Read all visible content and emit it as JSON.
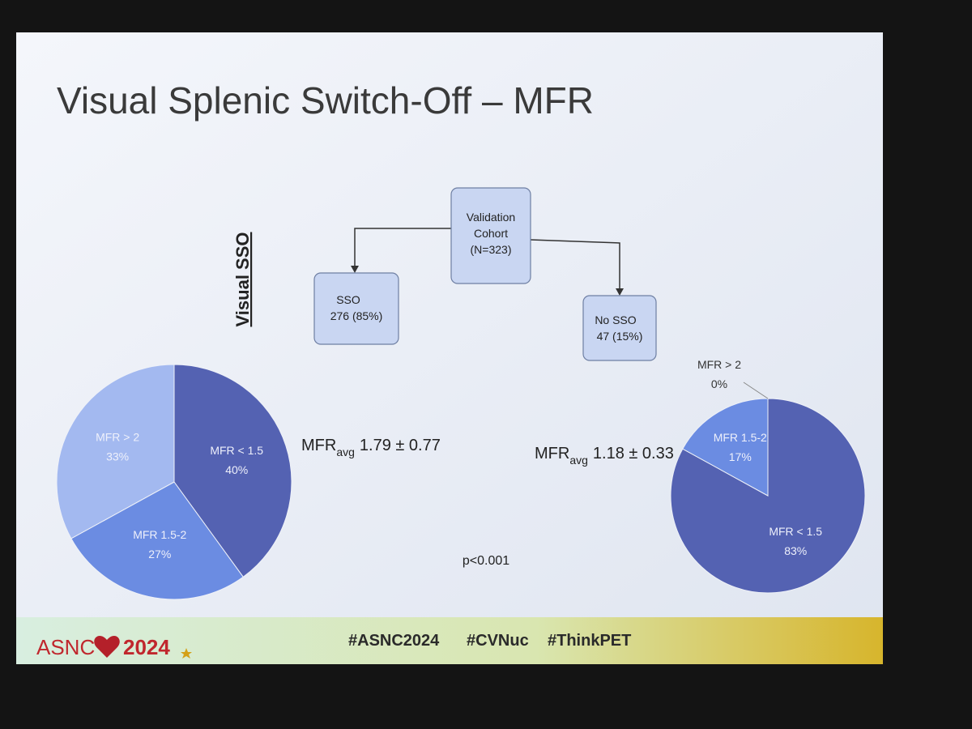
{
  "slide": {
    "title": "Visual Splenic Switch-Off – MFR",
    "side_label": "Visual SSO",
    "nodes": [
      {
        "lines": [
          "Validation",
          "Cohort",
          "(N=323)"
        ]
      },
      {
        "lines": [
          "SSO",
          "276 (85%)"
        ]
      },
      {
        "lines": [
          "No SSO",
          "47 (15%)"
        ]
      }
    ],
    "stats": [
      {
        "label": "MFR",
        "subscript": "avg",
        "value": "1.79 ± 0.77"
      },
      {
        "label": "MFR",
        "subscript": "avg",
        "value": "1.18 ± 0.33"
      }
    ],
    "p_value": "p<0.001",
    "footer": {
      "logo": "ASNC",
      "year": "2024",
      "hashtags": [
        "#ASNC2024",
        "#CVNuc",
        "#ThinkPET"
      ]
    }
  },
  "chart_data": [
    {
      "type": "pie",
      "categories": [
        "MFR < 1.5",
        "MFR 1.5-2",
        "MFR > 2"
      ],
      "values": [
        40,
        27,
        33
      ],
      "value_labels": [
        "40%",
        "27%",
        "33%"
      ],
      "colors": [
        "#5462b2",
        "#6b8ce2",
        "#a3b9f0"
      ]
    },
    {
      "type": "pie",
      "categories": [
        "MFR < 1.5",
        "MFR 1.5-2",
        "MFR > 2"
      ],
      "values": [
        83,
        17,
        0
      ],
      "value_labels": [
        "83%",
        "17%",
        "0%"
      ],
      "colors": [
        "#5462b2",
        "#6b8ce2",
        "#a3b9f0"
      ]
    }
  ]
}
